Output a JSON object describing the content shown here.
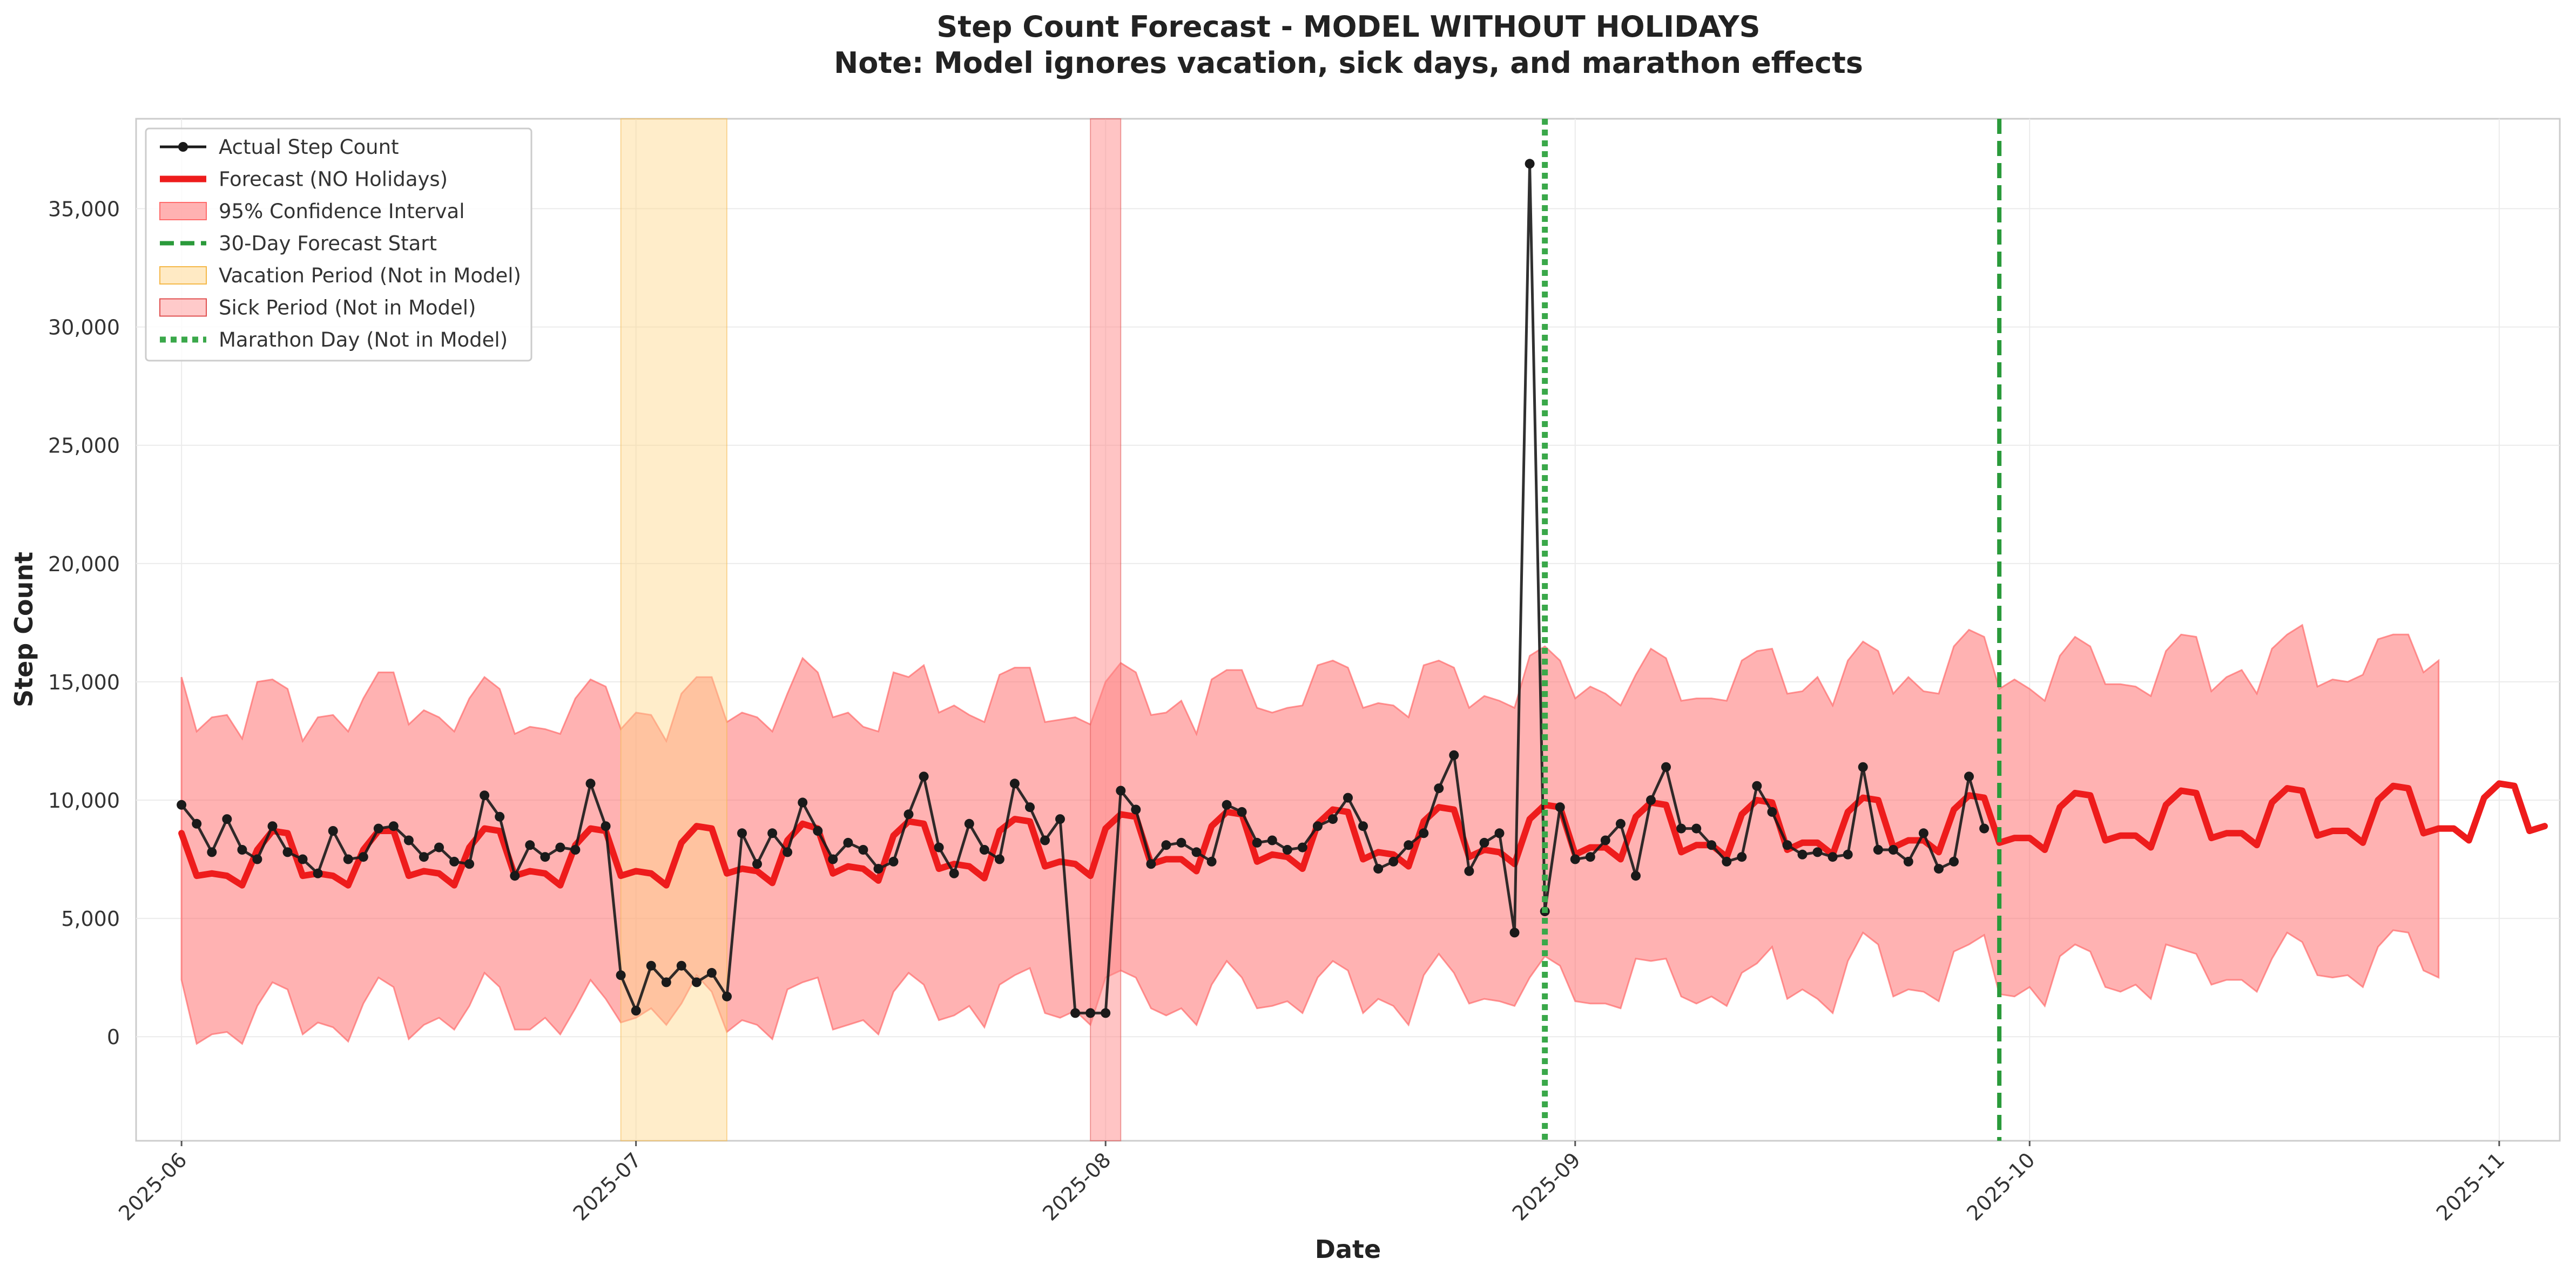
{
  "chart_data": {
    "type": "line",
    "title": "Step Count Forecast - MODEL WITHOUT HOLIDAYS",
    "subtitle": "Note: Model ignores vacation, sick days, and marathon effects",
    "xlabel": "Date",
    "ylabel": "Step Count",
    "x_range": [
      "2025-05-29",
      "2025-11-05"
    ],
    "ylim": [
      -4400,
      38800
    ],
    "y_ticks": [
      0,
      5000,
      10000,
      15000,
      20000,
      25000,
      30000,
      35000
    ],
    "y_tick_labels": [
      "0",
      "5,000",
      "10,000",
      "15,000",
      "20,000",
      "25,000",
      "30,000",
      "35,000"
    ],
    "x_ticks": [
      "2025-06-01",
      "2025-07-01",
      "2025-08-01",
      "2025-09-01",
      "2025-10-01",
      "2025-11-01"
    ],
    "x_tick_labels": [
      "2025-06",
      "2025-07",
      "2025-08",
      "2025-09",
      "2025-10",
      "2025-11"
    ],
    "grid": true,
    "legend_position": "top-left",
    "colors": {
      "actual": "#1a1a1a",
      "forecast": "#ee1c1c",
      "confidence": "#ff6b6b",
      "forecast_start": "#2a9a3a",
      "vacation": "#ffd68a",
      "sick": "#ff8a8a",
      "marathon": "#3aa84a"
    },
    "legend": [
      {
        "key": "actual",
        "label": "Actual Step Count"
      },
      {
        "key": "forecast",
        "label": "Forecast (NO Holidays)"
      },
      {
        "key": "confidence",
        "label": "95% Confidence Interval"
      },
      {
        "key": "forecast_start",
        "label": "30-Day Forecast Start"
      },
      {
        "key": "vacation",
        "label": "Vacation Period (Not in Model)"
      },
      {
        "key": "sick",
        "label": "Sick Period (Not in Model)"
      },
      {
        "key": "marathon",
        "label": "Marathon Day (Not in Model)"
      }
    ],
    "vacation_period": [
      "2025-06-30",
      "2025-07-07"
    ],
    "sick_period": [
      "2025-07-31",
      "2025-08-02"
    ],
    "marathon_day": "2025-08-30",
    "forecast_start": "2025-09-29",
    "actual": {
      "start": "2025-06-01",
      "values": [
        9800,
        9000,
        7800,
        9200,
        7900,
        7500,
        8900,
        7800,
        7500,
        6900,
        8700,
        7500,
        7600,
        8800,
        8900,
        8300,
        7600,
        8000,
        7400,
        7300,
        10200,
        9300,
        6800,
        8100,
        7600,
        8000,
        7900,
        10700,
        8900,
        2600,
        1100,
        3000,
        2300,
        3000,
        2300,
        2700,
        1700,
        8600,
        7300,
        8600,
        7800,
        9900,
        8700,
        7500,
        8200,
        7900,
        7100,
        7400,
        9400,
        11000,
        8000,
        6900,
        9000,
        7900,
        7500,
        10700,
        9700,
        8300,
        9200,
        1000,
        1000,
        1000,
        10400,
        9600,
        7300,
        8100,
        8200,
        7800,
        7400,
        9800,
        9500,
        8200,
        8300,
        7900,
        8000,
        8900,
        9200,
        10100,
        8900,
        7100,
        7400,
        8100,
        8600,
        10500,
        11900,
        7000,
        8200,
        8600,
        4400,
        36900,
        5300,
        9700,
        7500,
        7600,
        8300,
        9000,
        6800,
        10000,
        11400,
        8800,
        8800,
        8100,
        7400,
        7600,
        10600,
        9500,
        8100,
        7700,
        7800,
        7600,
        7700,
        11400,
        7900,
        7900,
        7400,
        8600,
        7100,
        7400,
        11000,
        8800
      ]
    },
    "forecast": {
      "start": "2025-06-01",
      "values": [
        8600,
        6800,
        6900,
        6800,
        6400,
        7900,
        8700,
        8600,
        6800,
        6900,
        6800,
        6400,
        7900,
        8700,
        8700,
        6800,
        7000,
        6900,
        6400,
        8000,
        8800,
        8700,
        6800,
        7000,
        6900,
        6400,
        8100,
        8800,
        8700,
        6800,
        7000,
        6900,
        6400,
        8200,
        8900,
        8800,
        6900,
        7100,
        7000,
        6500,
        8300,
        9000,
        8800,
        6900,
        7200,
        7100,
        6600,
        8500,
        9100,
        9000,
        7100,
        7300,
        7200,
        6700,
        8700,
        9200,
        9100,
        7200,
        7400,
        7300,
        6800,
        8800,
        9400,
        9300,
        7300,
        7500,
        7500,
        7000,
        8900,
        9500,
        9400,
        7400,
        7700,
        7600,
        7100,
        9000,
        9600,
        9500,
        7500,
        7800,
        7700,
        7200,
        9100,
        9700,
        9600,
        7600,
        7900,
        7800,
        7300,
        9200,
        9800,
        9700,
        7700,
        8000,
        8000,
        7500,
        9300,
        9900,
        9800,
        7800,
        8100,
        8100,
        7600,
        9400,
        10000,
        9900,
        7900,
        8200,
        8200,
        7700,
        9500,
        10100,
        10000,
        8000,
        8300,
        8300,
        7800,
        9600,
        10200,
        10100,
        8200,
        8400,
        8400,
        7900,
        9700,
        10300,
        10200,
        8300,
        8500,
        8500,
        8000,
        9800,
        10400,
        10300,
        8400,
        8600,
        8600,
        8100,
        9900,
        10500,
        10400,
        8500,
        8700,
        8700,
        8200,
        10000,
        10600,
        10500,
        8600,
        8800,
        8800,
        8300,
        10100,
        10700,
        10600,
        8700,
        8900
      ]
    },
    "ci_lower": {
      "start": "2025-06-01",
      "values": [
        2400,
        -300,
        100,
        200,
        -300,
        1300,
        2300,
        2000,
        100,
        600,
        400,
        -200,
        1400,
        2500,
        2100,
        -100,
        500,
        800,
        300,
        1300,
        2700,
        2100,
        300,
        300,
        800,
        100,
        1200,
        2400,
        1600,
        600,
        800,
        1200,
        500,
        1400,
        2600,
        1900,
        200,
        700,
        500,
        -100,
        2000,
        2300,
        2500,
        300,
        500,
        700,
        100,
        1900,
        2700,
        2200,
        700,
        900,
        1300,
        400,
        2200,
        2600,
        2900,
        1000,
        800,
        1100,
        500,
        2500,
        2800,
        2500,
        1200,
        900,
        1200,
        500,
        2200,
        3200,
        2500,
        1200,
        1300,
        1500,
        1000,
        2500,
        3200,
        2800,
        1000,
        1600,
        1300,
        500,
        2600,
        3500,
        2700,
        1400,
        1600,
        1500,
        1300,
        2500,
        3400,
        3000,
        1500,
        1400,
        1400,
        1200,
        3300,
        3200,
        3300,
        1700,
        1400,
        1700,
        1300,
        2700,
        3100,
        3800,
        1600,
        2000,
        1600,
        1000,
        3200,
        4400,
        3900,
        1700,
        2000,
        1900,
        1500,
        3600,
        3900,
        4300,
        1800,
        1700,
        2100,
        1300,
        3400,
        3900,
        3600,
        2100,
        1900,
        2200,
        1600,
        3900,
        3700,
        3500,
        2200,
        2400,
        2400,
        1900,
        3300,
        4400,
        4000,
        2600,
        2500,
        2600,
        2100,
        3800,
        4500,
        4400,
        2800,
        2500
      ]
    },
    "ci_upper": {
      "start": "2025-06-01",
      "values": [
        15200,
        12900,
        13500,
        13600,
        12600,
        15000,
        15100,
        14700,
        12500,
        13500,
        13600,
        12900,
        14300,
        15400,
        15400,
        13200,
        13800,
        13500,
        12900,
        14300,
        15200,
        14700,
        12800,
        13100,
        13000,
        12800,
        14300,
        15100,
        14800,
        13000,
        13700,
        13600,
        12500,
        14500,
        15200,
        15200,
        13300,
        13700,
        13500,
        12900,
        14500,
        16000,
        15400,
        13500,
        13700,
        13100,
        12900,
        15400,
        15200,
        15700,
        13700,
        14000,
        13600,
        13300,
        15300,
        15600,
        15600,
        13300,
        13400,
        13500,
        13200,
        15000,
        15800,
        15400,
        13600,
        13700,
        14200,
        12800,
        15100,
        15500,
        15500,
        13900,
        13700,
        13900,
        14000,
        15700,
        15900,
        15600,
        13900,
        14100,
        14000,
        13500,
        15700,
        15900,
        15600,
        13900,
        14400,
        14200,
        13900,
        16100,
        16500,
        15900,
        14300,
        14800,
        14500,
        14000,
        15300,
        16400,
        16000,
        14200,
        14300,
        14300,
        14200,
        15900,
        16300,
        16400,
        14500,
        14600,
        15200,
        14000,
        15900,
        16700,
        16300,
        14500,
        15200,
        14600,
        14500,
        16500,
        17200,
        16900,
        14700,
        15100,
        14700,
        14200,
        16100,
        16900,
        16500,
        14900,
        14900,
        14800,
        14400,
        16300,
        17000,
        16900,
        14600,
        15200,
        15500,
        14500,
        16400,
        17000,
        17400,
        14800,
        15100,
        15000,
        15300,
        16800,
        17000,
        17000,
        15400,
        15900
      ]
    }
  }
}
